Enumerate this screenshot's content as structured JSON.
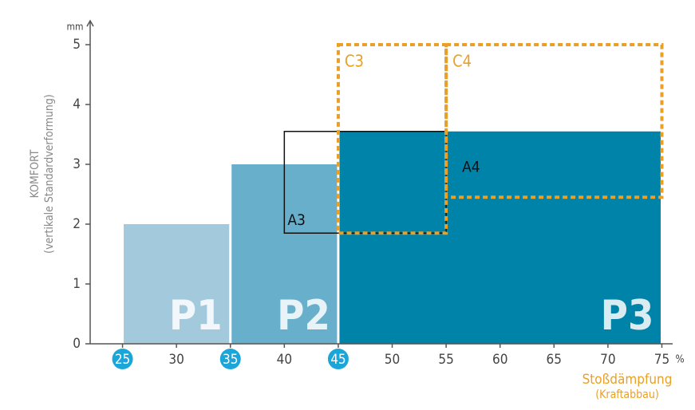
{
  "chart_data": {
    "type": "regions",
    "y_label": [
      "KOMFORT",
      "(vertikale Standardverformung)"
    ],
    "y_unit": "mm",
    "x_label": [
      "Stoßdämpfung",
      "(Kraftabbau)"
    ],
    "x_unit": "%",
    "xlim": [
      22,
      76
    ],
    "ylim": [
      0,
      5.4
    ],
    "xticks": [
      25,
      30,
      35,
      40,
      45,
      50,
      55,
      60,
      65,
      70,
      75
    ],
    "yticks": [
      0,
      1,
      2,
      3,
      4,
      5
    ],
    "highlight_xtick_indices": [
      0,
      2,
      4
    ],
    "highlight_color": "#1aa6d9",
    "x_label_color": "#e8a028",
    "regions": [
      {
        "name": "P1",
        "x": [
          25,
          35
        ],
        "y": [
          0,
          2
        ],
        "style": "fill",
        "color": "#a3c9dc"
      },
      {
        "name": "P2",
        "x": [
          35,
          45
        ],
        "y": [
          0,
          3
        ],
        "style": "fill",
        "color": "#68afcc"
      },
      {
        "name": "P3",
        "x": [
          45,
          75
        ],
        "y": [
          0,
          3.55
        ],
        "style": "fill",
        "color": "#0083a9"
      },
      {
        "name": "A3",
        "x": [
          40,
          55
        ],
        "y": [
          1.85,
          3.55
        ],
        "style": "outline",
        "color": "#111111"
      },
      {
        "name": "A4",
        "x": [
          55,
          75
        ],
        "y": [
          2.45,
          3.55
        ],
        "style": "label",
        "color": "#111111"
      },
      {
        "name": "C3",
        "x": [
          45,
          55
        ],
        "y": [
          1.85,
          5
        ],
        "style": "dashed",
        "color": "#e8a028"
      },
      {
        "name": "C4",
        "x": [
          55,
          75
        ],
        "y": [
          2.45,
          5
        ],
        "style": "dashed",
        "color": "#e8a028"
      }
    ]
  }
}
